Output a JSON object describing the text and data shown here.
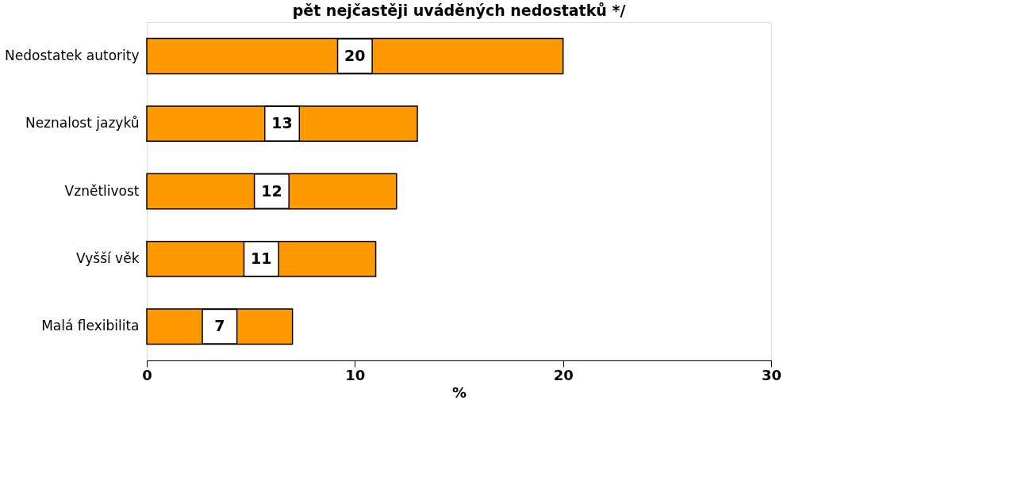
{
  "chart_data": {
    "type": "bar",
    "orientation": "horizontal",
    "title": "pět nejčastěji uváděných nedostatků */",
    "xlabel": "%",
    "categories": [
      "Nedostatek autority",
      "Neznalost jazyků",
      "Vznětlivost",
      "Vyšší věk",
      "Malá flexibilita"
    ],
    "values": [
      20,
      13,
      12,
      11,
      7
    ],
    "color": "#ff9900",
    "xlim": [
      0,
      30
    ],
    "xticks": [
      0,
      10,
      20,
      30
    ],
    "data_labels": true,
    "grid": false
  }
}
